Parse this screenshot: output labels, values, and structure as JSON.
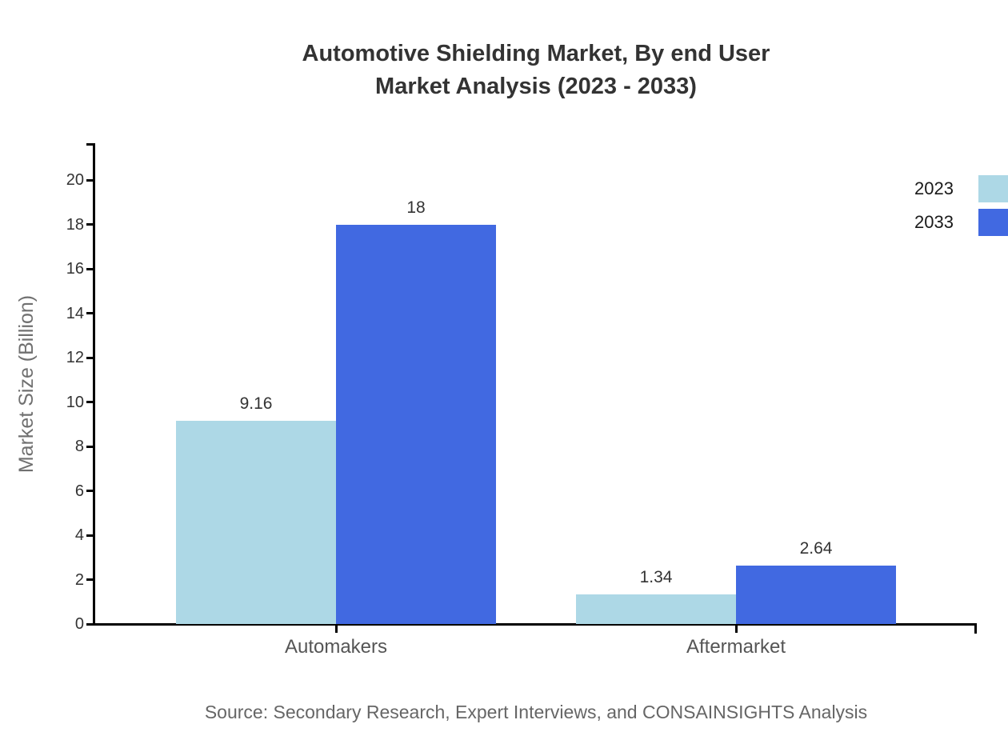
{
  "title": {
    "line1": "Automotive Shielding Market, By end User",
    "line2": "Market Analysis (2023 - 2033)"
  },
  "source_note": "Source: Secondary Research, Expert Interviews, and CONSAINSIGHTS Analysis",
  "chart_data": {
    "type": "bar",
    "title": "Automotive Shielding Market, By end User Market Analysis (2023 - 2033)",
    "categories": [
      "Automakers",
      "Aftermarket"
    ],
    "series": [
      {
        "name": "2023",
        "color": "#ADD8E6",
        "values": [
          9.16,
          1.34
        ],
        "labels": [
          "9.16",
          "1.34"
        ]
      },
      {
        "name": "2033",
        "color": "#4169E1",
        "values": [
          18,
          2.64
        ],
        "labels": [
          "18",
          "2.64"
        ]
      }
    ],
    "xlabel": "",
    "ylabel": "Market Size (Billion)",
    "ylim": [
      0,
      20
    ],
    "yticks": [
      0,
      2,
      4,
      6,
      8,
      10,
      12,
      14,
      16,
      18,
      20
    ],
    "grid": false,
    "legend_position": "top-right",
    "colors": {
      "axis": "#000000",
      "tick_label": "#333333",
      "value_label": "#333333",
      "category_label": "#555555",
      "axis_title": "#707070",
      "title_text": "#333333",
      "source_text": "#666666",
      "legend_label": "#1a1a1a"
    }
  }
}
